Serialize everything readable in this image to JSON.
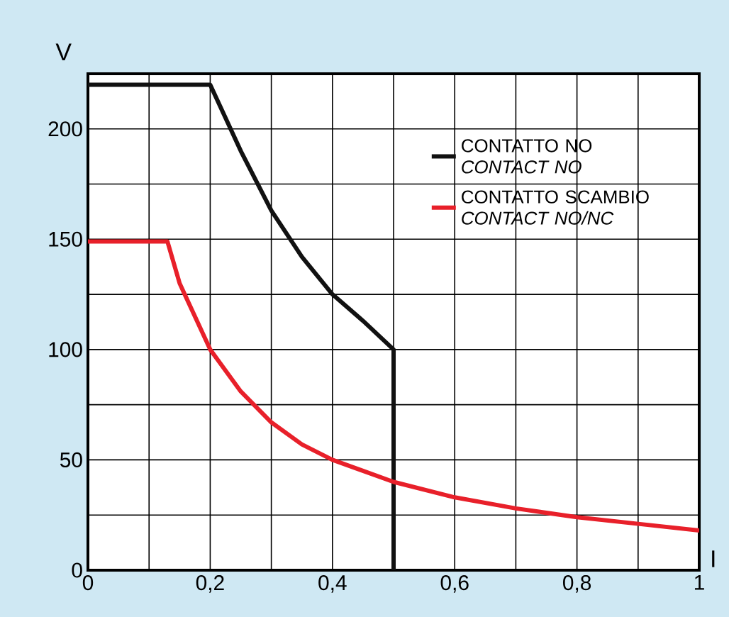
{
  "chart_data": {
    "type": "line",
    "xlabel": "I",
    "ylabel": "V",
    "xlim": [
      0,
      1
    ],
    "ylim": [
      0,
      225
    ],
    "xticks": [
      0,
      {
        "value": 0.2,
        "label": "0,2"
      },
      {
        "value": 0.4,
        "label": "0,4"
      },
      {
        "value": 0.6,
        "label": "0,6"
      },
      {
        "value": 0.8,
        "label": "0,8"
      },
      1
    ],
    "yticks": [
      0,
      50,
      100,
      150,
      200
    ],
    "grid": true,
    "legend": "top right",
    "marker": "none",
    "line_style": "solid",
    "series": [
      {
        "name": "CONTATTO NO *CONTACT NO*",
        "color": "#111111",
        "x": [
          0,
          0.2,
          0.25,
          0.3,
          0.35,
          0.4,
          0.45,
          0.5,
          0.5
        ],
        "values": [
          220,
          220,
          190,
          163,
          142,
          125,
          113,
          100,
          0
        ]
      },
      {
        "name": "CONTATTO SCAMBIO *CONTACT NO/NC*",
        "color": "#e8202a",
        "x": [
          0,
          0.13,
          0.15,
          0.2,
          0.25,
          0.3,
          0.35,
          0.4,
          0.5,
          0.6,
          0.7,
          0.8,
          0.9,
          1.0
        ],
        "values": [
          149,
          149,
          130,
          100,
          81,
          67,
          57,
          50,
          40,
          33,
          28,
          24,
          21,
          18
        ]
      }
    ]
  }
}
